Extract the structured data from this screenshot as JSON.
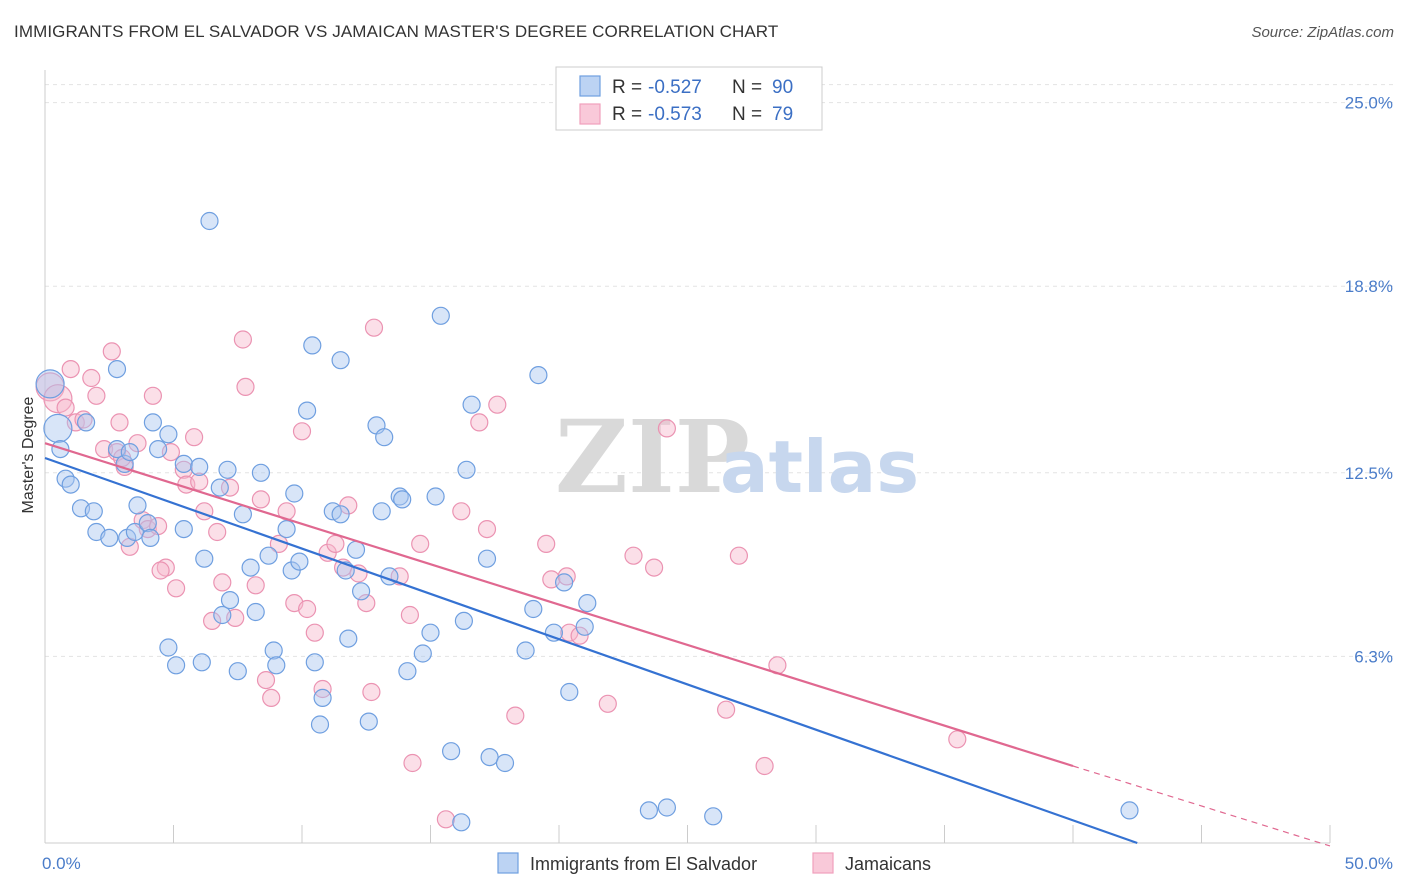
{
  "header": {
    "title": "IMMIGRANTS FROM EL SALVADOR VS JAMAICAN MASTER'S DEGREE CORRELATION CHART",
    "source": "Source: ZipAtlas.com"
  },
  "legend": {
    "series": [
      {
        "r_label": "R =",
        "r_value": "-0.527",
        "n_label": "N =",
        "n_value": "90"
      },
      {
        "r_label": "R =",
        "r_value": "-0.573",
        "n_label": "N =",
        "n_value": "79"
      }
    ]
  },
  "watermark": {
    "zip": "ZIP",
    "atlas": "atlas"
  },
  "chart_data": {
    "type": "scatter",
    "title": "IMMIGRANTS FROM EL SALVADOR VS JAMAICAN MASTER'S DEGREE CORRELATION CHART",
    "ylabel": "Master's Degree",
    "xlabel": "",
    "xlim": [
      0,
      50
    ],
    "ylim": [
      0,
      26.1
    ],
    "x_tick_labels": [
      "0.0%",
      "50.0%"
    ],
    "y_ticks": [
      6.3,
      12.5,
      18.8,
      25.0
    ],
    "y_tick_labels": [
      "6.3%",
      "12.5%",
      "18.8%",
      "25.0%"
    ],
    "grid": true,
    "legend_position": "top-center",
    "colors": {
      "blue": "#6f9fe0",
      "pink": "#f0a0bc",
      "blue_line": "#3572d2",
      "pink_line": "#e06890"
    },
    "series": [
      {
        "name": "Immigrants from El Salvador",
        "color": "#6f9fe0",
        "trend": {
          "x0": 0,
          "y0": 13.0,
          "x1": 42.5,
          "y1": 0
        },
        "points": [
          [
            0.2,
            15.5
          ],
          [
            0.5,
            14.0
          ],
          [
            0.6,
            13.3
          ],
          [
            0.8,
            12.3
          ],
          [
            1.0,
            12.1
          ],
          [
            1.4,
            11.3
          ],
          [
            1.9,
            11.2
          ],
          [
            2.0,
            10.5
          ],
          [
            2.5,
            10.3
          ],
          [
            1.6,
            14.2
          ],
          [
            2.8,
            13.3
          ],
          [
            2.8,
            16.0
          ],
          [
            3.1,
            12.8
          ],
          [
            3.2,
            10.3
          ],
          [
            3.3,
            13.2
          ],
          [
            3.5,
            10.5
          ],
          [
            3.6,
            11.4
          ],
          [
            4.0,
            10.8
          ],
          [
            4.1,
            10.3
          ],
          [
            4.2,
            14.2
          ],
          [
            4.4,
            13.3
          ],
          [
            4.8,
            13.8
          ],
          [
            4.8,
            6.6
          ],
          [
            5.1,
            6.0
          ],
          [
            5.4,
            12.8
          ],
          [
            5.4,
            10.6
          ],
          [
            6.0,
            12.7
          ],
          [
            6.1,
            6.1
          ],
          [
            6.2,
            9.6
          ],
          [
            6.4,
            21.0
          ],
          [
            6.8,
            12.0
          ],
          [
            6.9,
            7.7
          ],
          [
            7.1,
            12.6
          ],
          [
            7.2,
            8.2
          ],
          [
            7.5,
            5.8
          ],
          [
            7.7,
            11.1
          ],
          [
            8.0,
            9.3
          ],
          [
            8.2,
            7.8
          ],
          [
            8.4,
            12.5
          ],
          [
            8.7,
            9.7
          ],
          [
            8.9,
            6.5
          ],
          [
            9.0,
            6.0
          ],
          [
            9.4,
            10.6
          ],
          [
            9.6,
            9.2
          ],
          [
            9.7,
            11.8
          ],
          [
            9.9,
            9.5
          ],
          [
            10.2,
            14.6
          ],
          [
            10.4,
            16.8
          ],
          [
            10.5,
            6.1
          ],
          [
            10.7,
            4.0
          ],
          [
            10.8,
            4.9
          ],
          [
            11.2,
            11.2
          ],
          [
            11.5,
            11.1
          ],
          [
            11.5,
            16.3
          ],
          [
            11.7,
            9.2
          ],
          [
            11.8,
            6.9
          ],
          [
            12.1,
            9.9
          ],
          [
            12.3,
            8.5
          ],
          [
            12.6,
            4.1
          ],
          [
            12.9,
            14.1
          ],
          [
            13.1,
            11.2
          ],
          [
            13.2,
            13.7
          ],
          [
            13.4,
            9.0
          ],
          [
            13.8,
            11.7
          ],
          [
            13.9,
            11.6
          ],
          [
            14.1,
            5.8
          ],
          [
            14.7,
            6.4
          ],
          [
            15.0,
            7.1
          ],
          [
            15.2,
            11.7
          ],
          [
            15.4,
            17.8
          ],
          [
            15.8,
            3.1
          ],
          [
            16.2,
            0.7
          ],
          [
            16.3,
            7.5
          ],
          [
            16.4,
            12.6
          ],
          [
            16.6,
            14.8
          ],
          [
            17.2,
            9.6
          ],
          [
            17.3,
            2.9
          ],
          [
            17.9,
            2.7
          ],
          [
            18.7,
            6.5
          ],
          [
            19.0,
            7.9
          ],
          [
            19.2,
            15.8
          ],
          [
            19.8,
            7.1
          ],
          [
            20.2,
            8.8
          ],
          [
            20.4,
            5.1
          ],
          [
            21.0,
            7.3
          ],
          [
            21.1,
            8.1
          ],
          [
            23.5,
            1.1
          ],
          [
            24.2,
            1.2
          ],
          [
            26.0,
            0.9
          ],
          [
            42.2,
            1.1
          ]
        ]
      },
      {
        "name": "Jamaicans",
        "color": "#f0a0bc",
        "trend": {
          "x0": 0,
          "y0": 13.5,
          "x1": 40.0,
          "y1": 2.6,
          "dash_to_x": 50,
          "dash_to_y": -0.1
        },
        "points": [
          [
            0.2,
            15.4
          ],
          [
            0.5,
            15.0
          ],
          [
            0.8,
            14.7
          ],
          [
            1.0,
            16.0
          ],
          [
            1.2,
            14.2
          ],
          [
            1.5,
            14.3
          ],
          [
            1.8,
            15.7
          ],
          [
            2.0,
            15.1
          ],
          [
            2.3,
            13.3
          ],
          [
            2.6,
            16.6
          ],
          [
            2.8,
            13.2
          ],
          [
            2.9,
            14.2
          ],
          [
            3.1,
            12.7
          ],
          [
            3.3,
            10.0
          ],
          [
            3.6,
            13.5
          ],
          [
            3.8,
            10.9
          ],
          [
            4.0,
            10.6
          ],
          [
            4.2,
            15.1
          ],
          [
            4.4,
            10.7
          ],
          [
            4.7,
            9.3
          ],
          [
            4.9,
            13.2
          ],
          [
            5.1,
            8.6
          ],
          [
            5.4,
            12.6
          ],
          [
            5.5,
            12.1
          ],
          [
            5.8,
            13.7
          ],
          [
            6.0,
            12.2
          ],
          [
            6.2,
            11.2
          ],
          [
            6.5,
            7.5
          ],
          [
            6.7,
            10.5
          ],
          [
            6.9,
            8.8
          ],
          [
            7.2,
            12.0
          ],
          [
            7.4,
            7.6
          ],
          [
            7.7,
            17.0
          ],
          [
            7.8,
            15.4
          ],
          [
            8.2,
            8.7
          ],
          [
            8.4,
            11.6
          ],
          [
            8.6,
            5.5
          ],
          [
            8.8,
            4.9
          ],
          [
            9.1,
            10.1
          ],
          [
            9.4,
            11.2
          ],
          [
            9.7,
            8.1
          ],
          [
            10.0,
            13.9
          ],
          [
            10.2,
            7.9
          ],
          [
            10.5,
            7.1
          ],
          [
            10.8,
            5.2
          ],
          [
            11.0,
            9.8
          ],
          [
            11.3,
            10.1
          ],
          [
            11.6,
            9.3
          ],
          [
            11.8,
            11.4
          ],
          [
            12.2,
            9.1
          ],
          [
            12.5,
            8.1
          ],
          [
            12.7,
            5.1
          ],
          [
            12.8,
            17.4
          ],
          [
            13.8,
            9.0
          ],
          [
            14.2,
            7.7
          ],
          [
            14.3,
            2.7
          ],
          [
            14.6,
            10.1
          ],
          [
            15.6,
            0.8
          ],
          [
            16.2,
            11.2
          ],
          [
            16.9,
            14.2
          ],
          [
            17.2,
            10.6
          ],
          [
            17.6,
            14.8
          ],
          [
            18.3,
            4.3
          ],
          [
            19.5,
            10.1
          ],
          [
            19.7,
            8.9
          ],
          [
            20.3,
            9.0
          ],
          [
            20.4,
            7.1
          ],
          [
            20.8,
            7.0
          ],
          [
            21.9,
            4.7
          ],
          [
            22.9,
            9.7
          ],
          [
            23.7,
            9.3
          ],
          [
            24.2,
            14.0
          ],
          [
            26.5,
            4.5
          ],
          [
            27.0,
            9.7
          ],
          [
            28.0,
            2.6
          ],
          [
            28.5,
            6.0
          ],
          [
            35.5,
            3.5
          ],
          [
            4.5,
            9.2
          ],
          [
            3.0,
            13.0
          ]
        ]
      }
    ]
  },
  "bottom_legend": {
    "items": [
      "Immigrants from El Salvador",
      "Jamaicans"
    ]
  }
}
